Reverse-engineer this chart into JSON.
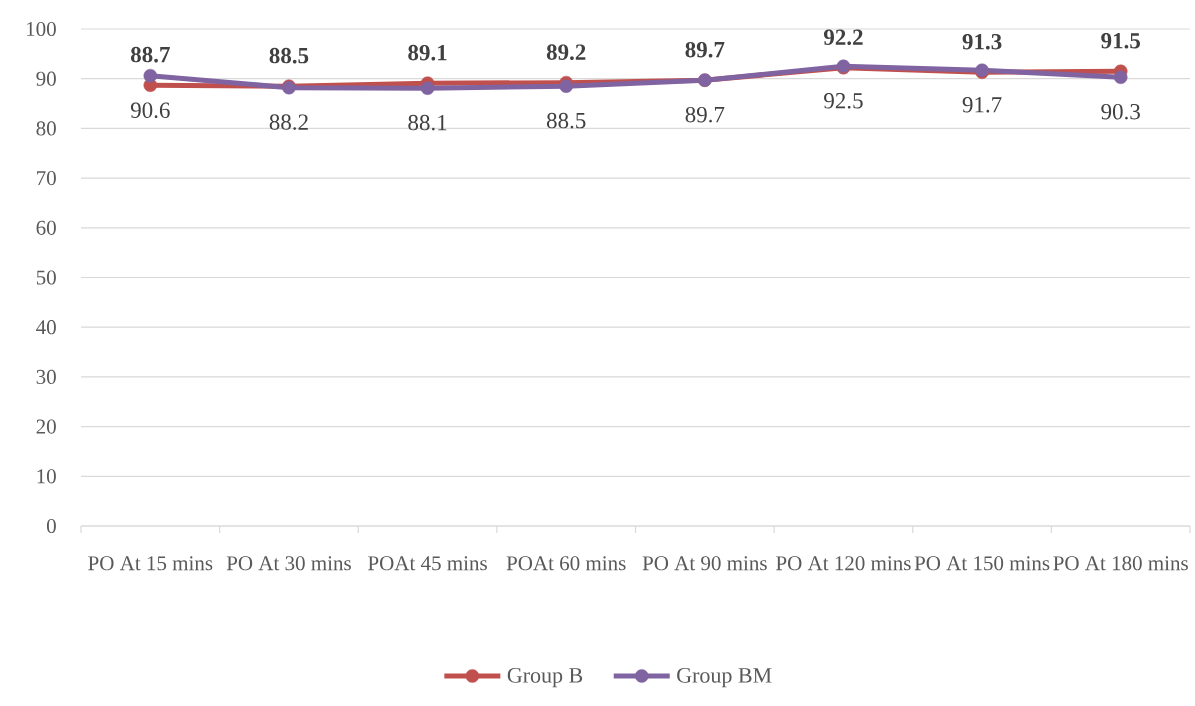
{
  "chart_data": {
    "type": "line",
    "categories": [
      "PO At 15 mins",
      "PO At 30 mins",
      "POAt 45 mins",
      "POAt 60 mins",
      "PO At 90 mins",
      "PO At 120 mins",
      "PO At 150 mins",
      "PO At 180 mins"
    ],
    "series": [
      {
        "name": "Group B",
        "color": "#c0504d",
        "values": [
          88.7,
          88.5,
          89.1,
          89.2,
          89.7,
          92.2,
          91.3,
          91.5
        ]
      },
      {
        "name": "Group BM",
        "color": "#8064a2",
        "values": [
          90.6,
          88.2,
          88.1,
          88.5,
          89.7,
          92.5,
          91.7,
          90.3
        ]
      }
    ],
    "ylim": [
      0,
      100
    ],
    "yticks": [
      0,
      10,
      20,
      30,
      40,
      50,
      60,
      70,
      80,
      90,
      100
    ],
    "grid": "y",
    "legend": "bottom",
    "marker": "circle",
    "line_style": "solid",
    "data_labels": true
  }
}
